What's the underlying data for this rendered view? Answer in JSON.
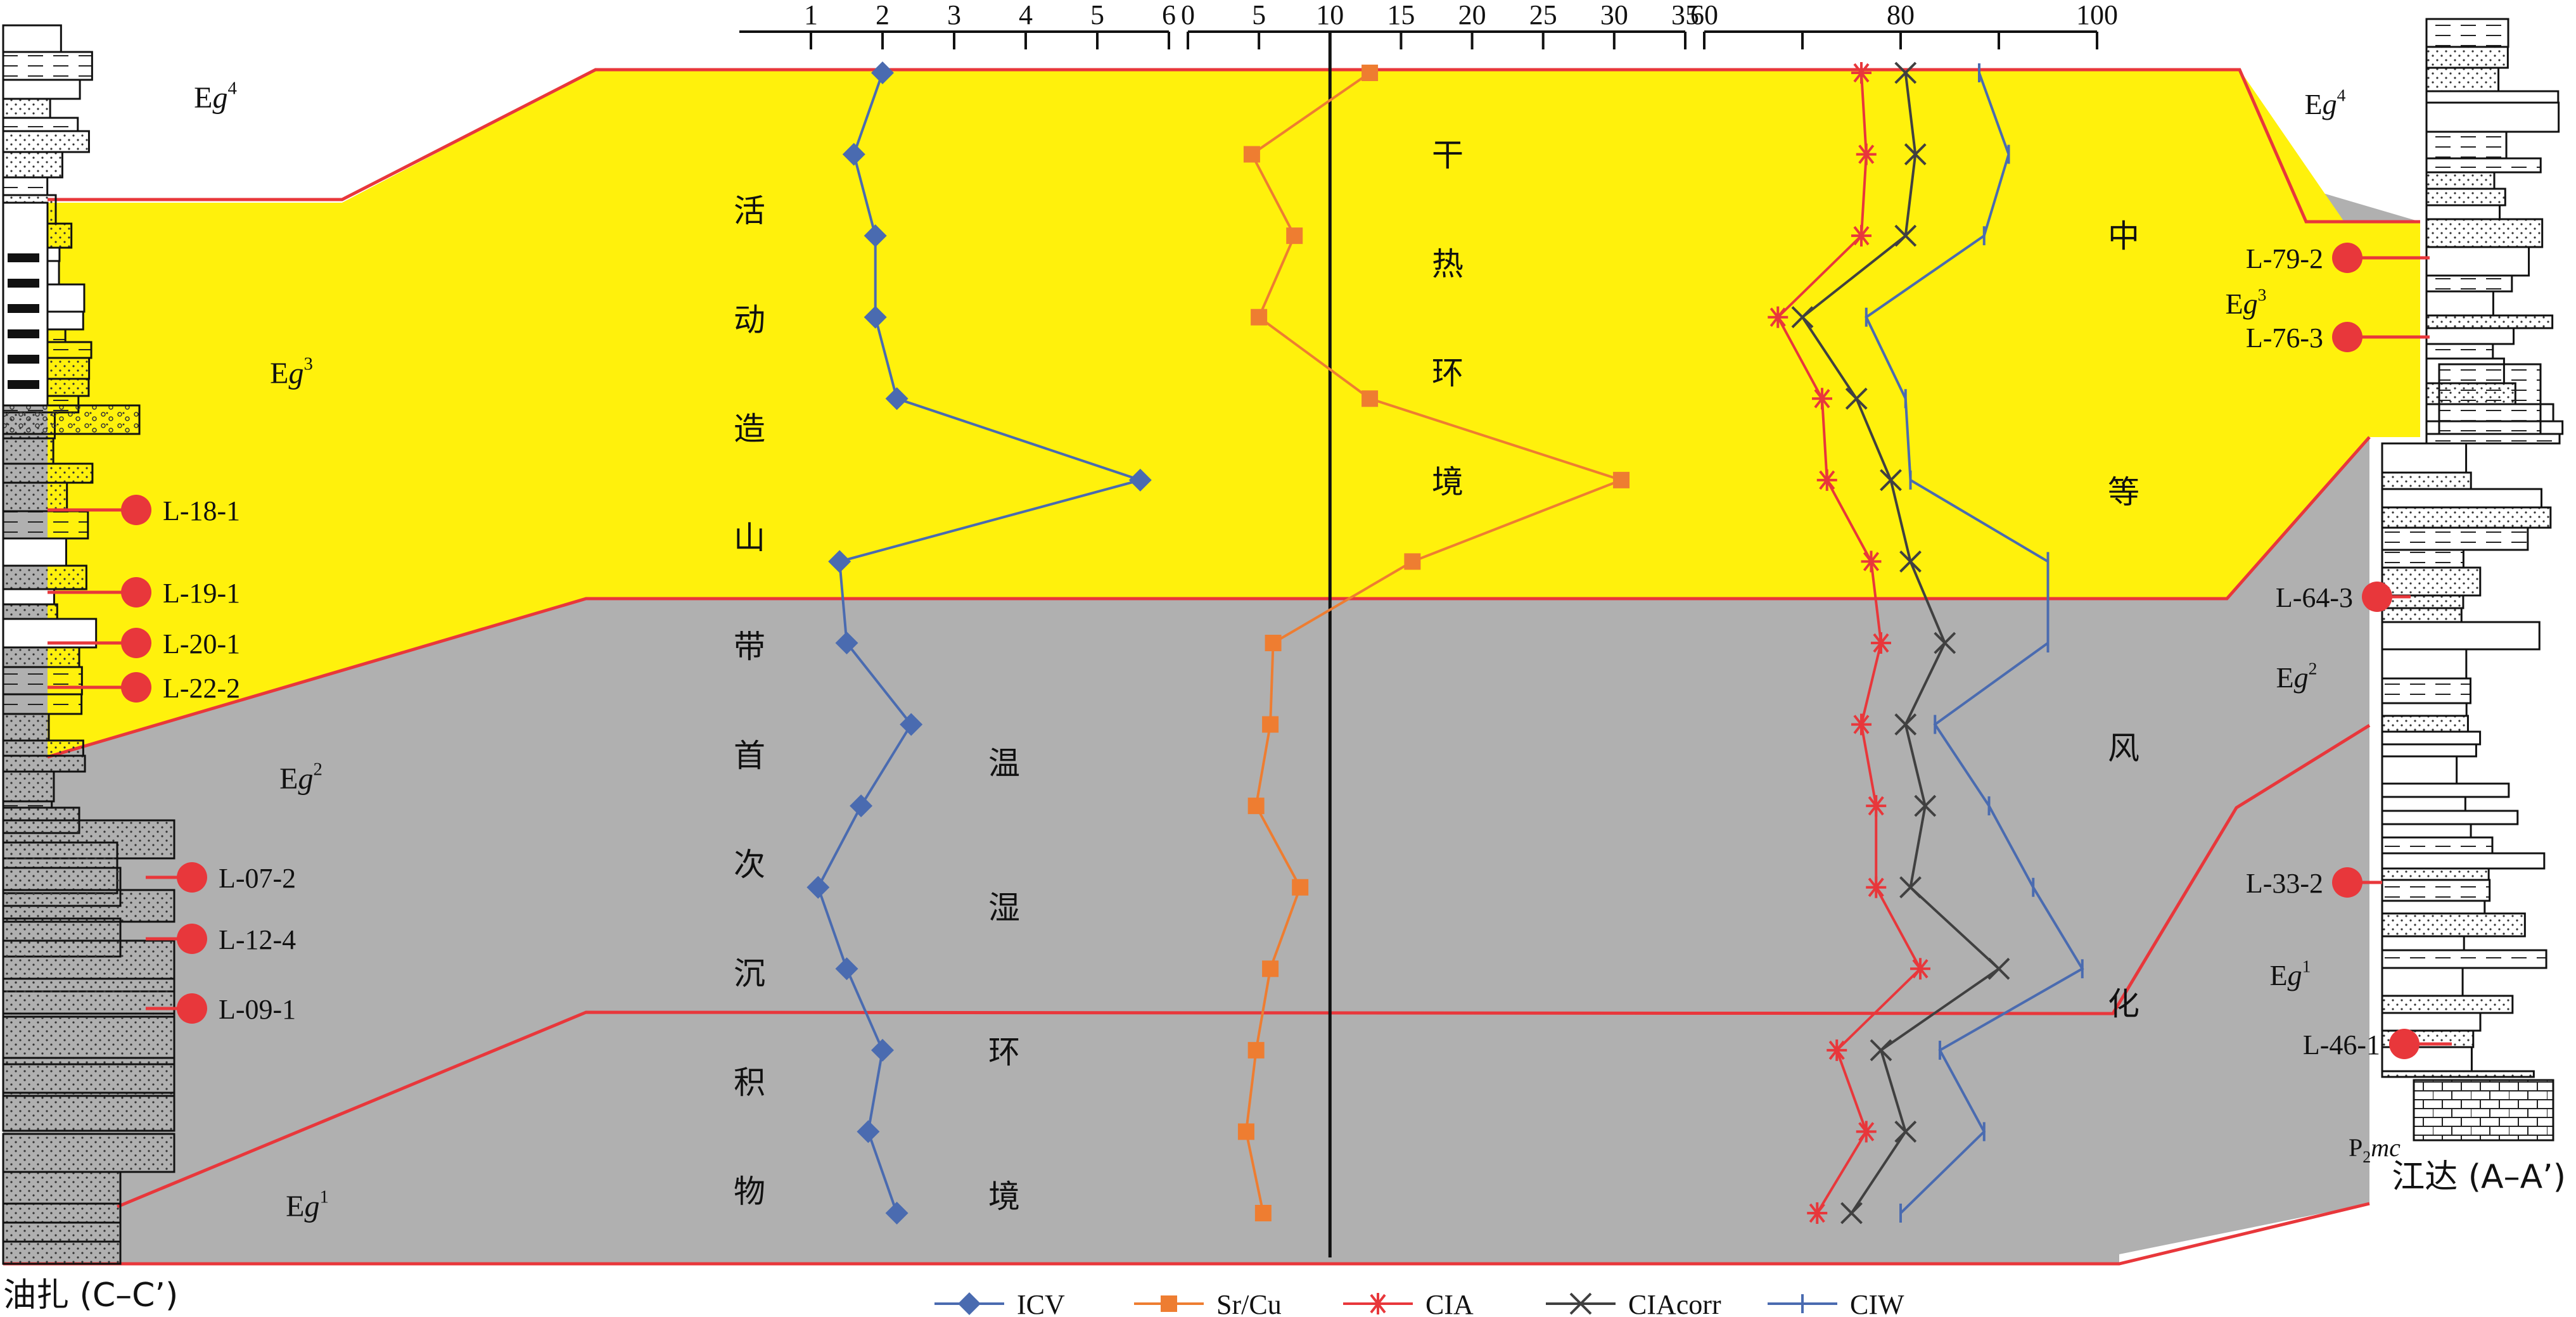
{
  "chart_data": {
    "type": "line",
    "orientation": "vertical-profile",
    "x_axes": [
      {
        "id": "icv",
        "ticks": [
          "1",
          "2",
          "3",
          "4",
          "5",
          "6"
        ],
        "range": [
          0,
          6
        ]
      },
      {
        "id": "srcu",
        "ticks": [
          "0",
          "5",
          "10",
          "15",
          "20",
          "25",
          "30",
          "35"
        ],
        "range": [
          0,
          35
        ],
        "reference_line": 10
      },
      {
        "id": "weathering",
        "ticks": [
          "60",
          "80",
          "100"
        ],
        "range": [
          60,
          100
        ]
      }
    ],
    "sample_levels": 15,
    "series": [
      {
        "name": "ICV",
        "axis": "icv",
        "color": "#4a6bb0",
        "marker": "diamond",
        "values": [
          2.0,
          1.6,
          1.9,
          1.9,
          2.2,
          5.6,
          1.4,
          1.5,
          2.4,
          1.7,
          1.1,
          1.5,
          2.0,
          1.8,
          2.2
        ]
      },
      {
        "name": "Sr/Cu",
        "axis": "srcu",
        "color": "#ee7d31",
        "marker": "square",
        "values": [
          12.8,
          4.5,
          7.5,
          5.0,
          12.8,
          30.5,
          15.8,
          6.0,
          5.8,
          4.8,
          7.9,
          5.8,
          4.8,
          4.1,
          5.3
        ]
      },
      {
        "name": "CIA",
        "axis": "weathering",
        "color": "#e8373b",
        "marker": "asterisk",
        "values": [
          76.0,
          76.5,
          76.0,
          67.5,
          72.0,
          72.5,
          77.0,
          78.0,
          76.0,
          77.5,
          77.5,
          82.0,
          73.5,
          76.5,
          71.5
        ]
      },
      {
        "name": "CIAcorr",
        "axis": "weathering",
        "color": "#404040",
        "marker": "x",
        "values": [
          80.5,
          81.5,
          80.5,
          70.0,
          75.5,
          79.0,
          81.0,
          84.5,
          80.5,
          82.5,
          81.0,
          90.0,
          78.0,
          80.5,
          75.0
        ]
      },
      {
        "name": "CIW",
        "axis": "weathering",
        "color": "#4a6bb0",
        "marker": "tick",
        "values": [
          88.0,
          91.0,
          88.5,
          76.5,
          80.5,
          81.0,
          95.0,
          95.0,
          83.5,
          89.0,
          93.5,
          98.5,
          84.0,
          88.5,
          80.0
        ]
      }
    ],
    "stages_left": [
      "Eg4",
      "Eg3",
      "Eg2",
      "Eg1"
    ],
    "stages_right": [
      "Eg4",
      "Eg3",
      "Eg2",
      "Eg1",
      "P2mc"
    ],
    "samples_left": [
      "L-18-1",
      "L-19-1",
      "L-20-1",
      "L-22-2",
      "L-07-2",
      "L-12-4",
      "L-09-1"
    ],
    "samples_right": [
      "L-79-2",
      "L-76-3",
      "L-64-3",
      "L-33-2",
      "L-46-1"
    ],
    "legend_position": "bottom"
  },
  "labels": {
    "section_left": "油扎 (C–C’)",
    "section_right": "江达 (A–A’)",
    "zone_tectonic": [
      "活",
      "动",
      "造",
      "山",
      "带",
      "首",
      "次",
      "沉",
      "积",
      "物"
    ],
    "zone_dry_hot": [
      "干",
      "热",
      "环",
      "境"
    ],
    "zone_warm_humid": [
      "温",
      "湿",
      "环",
      "境"
    ],
    "zone_moderate": [
      "中",
      "等",
      "风",
      "化"
    ]
  },
  "colors": {
    "yellow_zone": "#fff10c",
    "grey_zone": "#b0b0b0",
    "boundary": "#e8373b"
  }
}
